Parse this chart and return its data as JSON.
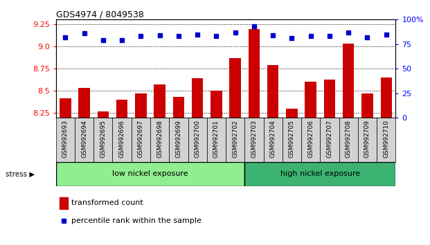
{
  "title": "GDS4974 / 8049538",
  "samples": [
    "GSM992693",
    "GSM992694",
    "GSM992695",
    "GSM992696",
    "GSM992697",
    "GSM992698",
    "GSM992699",
    "GSM992700",
    "GSM992701",
    "GSM992702",
    "GSM992703",
    "GSM992704",
    "GSM992705",
    "GSM992706",
    "GSM992707",
    "GSM992708",
    "GSM992709",
    "GSM992710"
  ],
  "transformed_count": [
    8.42,
    8.53,
    8.27,
    8.4,
    8.47,
    8.57,
    8.43,
    8.64,
    8.5,
    8.87,
    9.19,
    8.79,
    8.3,
    8.6,
    8.63,
    9.03,
    8.47,
    8.65
  ],
  "percentile_rank": [
    82,
    86,
    79,
    79,
    83,
    84,
    83,
    85,
    83,
    87,
    93,
    84,
    81,
    83,
    83,
    87,
    82,
    85
  ],
  "group_labels": [
    "low nickel exposure",
    "high nickel exposure"
  ],
  "n_low": 10,
  "n_high": 8,
  "group_color_low": "#90EE90",
  "group_color_high": "#3CB371",
  "ylim_left": [
    8.2,
    9.3
  ],
  "ylim_right": [
    0,
    100
  ],
  "yticks_left": [
    8.25,
    8.5,
    8.75,
    9.0,
    9.25
  ],
  "yticks_right": [
    0,
    25,
    50,
    75,
    100
  ],
  "bar_color": "#CC0000",
  "dot_color": "#0000CC",
  "bar_bottom": 8.2,
  "stress_label": "stress",
  "legend_bar": "transformed count",
  "legend_dot": "percentile rank within the sample",
  "tick_bg_color": "#D3D3D3"
}
